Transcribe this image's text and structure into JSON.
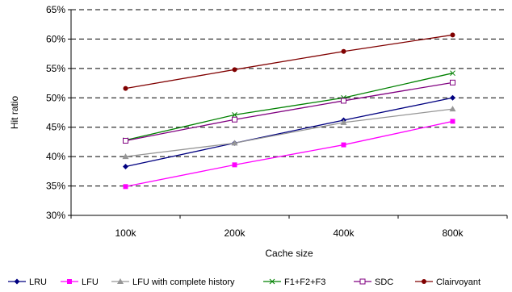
{
  "chart_data": {
    "type": "line",
    "title": "",
    "xlabel": "Cache size",
    "ylabel": "Hit ratio",
    "categories": [
      "100k",
      "200k",
      "400k",
      "800k"
    ],
    "ylim": [
      30,
      65
    ],
    "yticks": [
      30,
      35,
      40,
      45,
      50,
      55,
      60,
      65
    ],
    "ytick_format": "%",
    "grid": "horizontal-dashed",
    "legend": "bottom",
    "series": [
      {
        "name": "LRU",
        "values": [
          38.3,
          42.3,
          46.2,
          50.0
        ],
        "color": "#000080",
        "marker": "diamond"
      },
      {
        "name": "LFU",
        "values": [
          34.9,
          38.6,
          42.0,
          46.0
        ],
        "color": "#FF00FF",
        "marker": "square"
      },
      {
        "name": "LFU with complete history",
        "values": [
          40.0,
          42.3,
          45.8,
          48.1
        ],
        "color": "#969696",
        "marker": "triangle"
      },
      {
        "name": "F1+F2+F3",
        "values": [
          42.8,
          47.1,
          50.0,
          54.2
        ],
        "color": "#008000",
        "marker": "cross"
      },
      {
        "name": "SDC",
        "values": [
          42.7,
          46.3,
          49.5,
          52.6
        ],
        "color": "#800080",
        "marker": "square-open"
      },
      {
        "name": "Clairvoyant",
        "values": [
          51.6,
          54.8,
          57.9,
          60.7
        ],
        "color": "#800000",
        "marker": "circle"
      }
    ]
  }
}
